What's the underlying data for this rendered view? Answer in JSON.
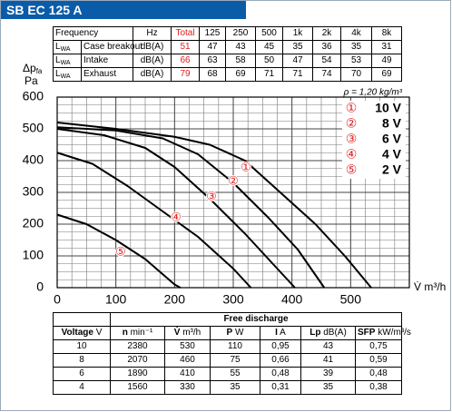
{
  "header": {
    "title": "SB EC 125 A"
  },
  "sound_table": {
    "columns": [
      "Frequency",
      "Hz",
      "Total",
      "125",
      "250",
      "500",
      "1k",
      "2k",
      "4k",
      "8k"
    ],
    "rows": [
      {
        "quantity": {
          "main": "L",
          "sub": "WA"
        },
        "label": "Case breakout",
        "unit": "dB(A)",
        "values": [
          "51",
          "47",
          "43",
          "45",
          "35",
          "36",
          "35",
          "31"
        ]
      },
      {
        "quantity": {
          "main": "L",
          "sub": "WA"
        },
        "label": "Intake",
        "unit": "dB(A)",
        "values": [
          "66",
          "63",
          "58",
          "50",
          "47",
          "54",
          "53",
          "49"
        ]
      },
      {
        "quantity": {
          "main": "L",
          "sub": "WA"
        },
        "label": "Exhaust",
        "unit": "dB(A)",
        "values": [
          "79",
          "68",
          "69",
          "71",
          "71",
          "74",
          "70",
          "69"
        ]
      }
    ]
  },
  "chart_data": {
    "type": "line",
    "ylabel": {
      "main": "Δp",
      "sub": "fa",
      "unit": "Pa"
    },
    "xlabel": "V̇ m³/h",
    "annotation": "ρ = 1,20 kg/m³",
    "xlim": [
      0,
      600
    ],
    "xticks": [
      0,
      100,
      200,
      300,
      400,
      500
    ],
    "ylim": [
      0,
      600
    ],
    "yticks": [
      0,
      100,
      200,
      300,
      400,
      500,
      600
    ],
    "grid": true,
    "legend": "upper right",
    "marker_color": "#e02020",
    "series": [
      {
        "name": "10 V",
        "marker": "①",
        "color": "#000000",
        "x": [
          0,
          100,
          200,
          260,
          320,
          380,
          440,
          490,
          535
        ],
        "values": [
          520,
          500,
          475,
          450,
          400,
          300,
          200,
          100,
          0
        ]
      },
      {
        "name": "8 V",
        "marker": "②",
        "color": "#000000",
        "x": [
          0,
          100,
          180,
          240,
          300,
          360,
          410,
          455
        ],
        "values": [
          505,
          495,
          470,
          420,
          330,
          220,
          120,
          0
        ]
      },
      {
        "name": "6 V",
        "marker": "③",
        "color": "#000000",
        "x": [
          0,
          80,
          150,
          200,
          260,
          320,
          370,
          405
        ],
        "values": [
          500,
          480,
          440,
          380,
          280,
          170,
          70,
          0
        ]
      },
      {
        "name": "4 V",
        "marker": "④",
        "color": "#000000",
        "x": [
          0,
          60,
          120,
          180,
          240,
          300,
          330
        ],
        "values": [
          425,
          390,
          320,
          240,
          160,
          60,
          0
        ]
      },
      {
        "name": "2 V",
        "marker": "⑤",
        "color": "#000000",
        "x": [
          0,
          50,
          100,
          150,
          200,
          210
        ],
        "values": [
          230,
          200,
          150,
          90,
          10,
          0
        ]
      }
    ]
  },
  "performance_table": {
    "group": "Free discharge",
    "columns": [
      {
        "name": "Voltage",
        "unit": "V"
      },
      {
        "name": "n",
        "unit": "min⁻¹"
      },
      {
        "name": "V̇",
        "unit": "m³/h"
      },
      {
        "name": "P",
        "unit": "W"
      },
      {
        "name": "I",
        "unit": "A"
      },
      {
        "name": "Lp",
        "unit": "dB(A)"
      },
      {
        "name": "SFP",
        "unit": "kW/m³/s"
      }
    ],
    "rows": [
      [
        "10",
        "2380",
        "530",
        "110",
        "0,95",
        "43",
        "0,75"
      ],
      [
        "8",
        "2070",
        "460",
        "75",
        "0,66",
        "41",
        "0,59"
      ],
      [
        "6",
        "1890",
        "410",
        "55",
        "0,48",
        "39",
        "0,48"
      ],
      [
        "4",
        "1560",
        "330",
        "35",
        "0,31",
        "35",
        "0,38"
      ]
    ]
  }
}
